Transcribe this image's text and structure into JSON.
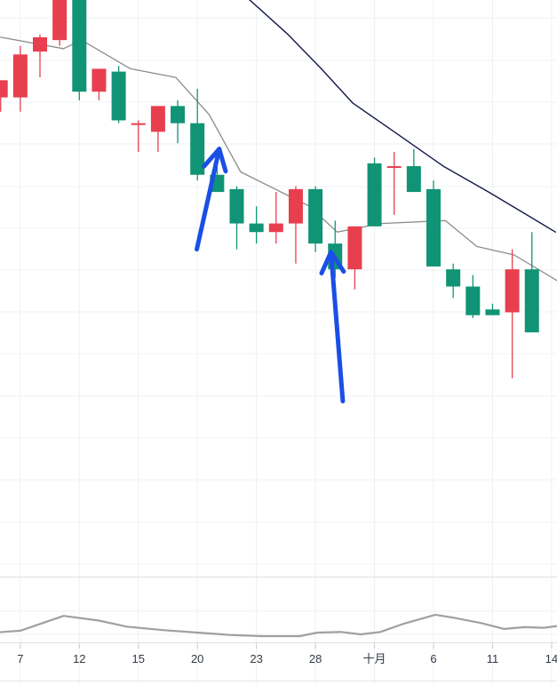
{
  "chart_data": {
    "type": "candlestick",
    "grid": true,
    "price_axis": {
      "ylim": [
        0,
        100
      ]
    },
    "x_tick_labels": [
      {
        "day": 1,
        "label": "7"
      },
      {
        "day": 4,
        "label": "12"
      },
      {
        "day": 7,
        "label": "15"
      },
      {
        "day": 10,
        "label": "20"
      },
      {
        "day": 13,
        "label": "23"
      },
      {
        "day": 16,
        "label": "28"
      },
      {
        "day": 19,
        "label": "十月"
      },
      {
        "day": 22,
        "label": "6"
      },
      {
        "day": 25,
        "label": "11"
      },
      {
        "day": 28,
        "label": "14"
      }
    ],
    "candles": [
      {
        "day": 0,
        "open": 83.0,
        "high": 85.5,
        "low": 80.5,
        "close": 86.0
      },
      {
        "day": 1,
        "open": 83.0,
        "high": 92.0,
        "low": 80.5,
        "close": 90.5
      },
      {
        "day": 2,
        "open": 91.0,
        "high": 94.0,
        "low": 86.5,
        "close": 93.5
      },
      {
        "day": 3,
        "open": 93.0,
        "high": 101.0,
        "low": 92.0,
        "close": 100.5
      },
      {
        "day": 4,
        "open": 100.5,
        "high": 101.0,
        "low": 82.5,
        "close": 84.0
      },
      {
        "day": 5,
        "open": 84.0,
        "high": 88.0,
        "low": 82.5,
        "close": 88.0
      },
      {
        "day": 6,
        "open": 87.5,
        "high": 88.5,
        "low": 78.5,
        "close": 79.0
      },
      {
        "day": 7,
        "open": 78.5,
        "high": 79.0,
        "low": 73.5,
        "close": 78.5
      },
      {
        "day": 8,
        "open": 77.0,
        "high": 81.5,
        "low": 73.5,
        "close": 81.5
      },
      {
        "day": 9,
        "open": 81.5,
        "high": 82.5,
        "low": 75.0,
        "close": 78.5
      },
      {
        "day": 10,
        "open": 78.5,
        "high": 84.5,
        "low": 68.5,
        "close": 69.5
      },
      {
        "day": 11,
        "open": 69.5,
        "high": 73.0,
        "low": 66.5,
        "close": 66.5
      },
      {
        "day": 12,
        "open": 67.0,
        "high": 67.5,
        "low": 56.5,
        "close": 61.0
      },
      {
        "day": 13,
        "open": 61.0,
        "high": 64.0,
        "low": 57.5,
        "close": 59.5
      },
      {
        "day": 14,
        "open": 59.5,
        "high": 66.5,
        "low": 57.5,
        "close": 61.0
      },
      {
        "day": 15,
        "open": 61.0,
        "high": 67.5,
        "low": 54.0,
        "close": 67.0
      },
      {
        "day": 16,
        "open": 67.0,
        "high": 67.5,
        "low": 56.0,
        "close": 57.5
      },
      {
        "day": 17,
        "open": 57.5,
        "high": 61.5,
        "low": 51.5,
        "close": 53.0
      },
      {
        "day": 18,
        "open": 53.0,
        "high": 60.5,
        "low": 49.5,
        "close": 60.5
      },
      {
        "day": 19,
        "open": 71.5,
        "high": 72.5,
        "low": 60.5,
        "close": 60.5
      },
      {
        "day": 20,
        "open": 71.0,
        "high": 73.5,
        "low": 62.5,
        "close": 71.0
      },
      {
        "day": 21,
        "open": 71.0,
        "high": 74.0,
        "low": 66.5,
        "close": 66.5
      },
      {
        "day": 22,
        "open": 67.0,
        "high": 68.5,
        "low": 53.5,
        "close": 53.5
      },
      {
        "day": 23,
        "open": 53.0,
        "high": 54.0,
        "low": 48.0,
        "close": 50.0
      },
      {
        "day": 24,
        "open": 50.0,
        "high": 52.0,
        "low": 44.5,
        "close": 45.0
      },
      {
        "day": 25,
        "open": 46.0,
        "high": 47.0,
        "low": 45.0,
        "close": 45.0
      },
      {
        "day": 26,
        "open": 45.5,
        "high": 56.5,
        "low": 34.0,
        "close": 53.0
      },
      {
        "day": 27,
        "open": 53.0,
        "high": 59.5,
        "low": 42.0,
        "close": 42.0
      }
    ],
    "ma_fast": {
      "color": "#8c8c8c",
      "x": [
        0,
        3.2,
        4.1,
        6.6,
        8.9,
        10.6,
        12.2,
        15.7,
        17.1,
        19.3,
        22.6,
        24.2,
        26.1,
        28.3
      ],
      "y": [
        93.5,
        91.5,
        93.0,
        88.0,
        86.5,
        80.0,
        70.0,
        64.0,
        59.5,
        61.0,
        61.5,
        57.0,
        55.5,
        51.0
      ]
    },
    "ma_slow": {
      "color": "#14184a",
      "x": [
        10.7,
        12.5,
        14.6,
        16.3,
        17.9,
        20.0,
        22.5,
        24.8,
        26.5,
        28.2
      ],
      "y": [
        104.0,
        100.5,
        94.0,
        88.0,
        82.0,
        77.0,
        71.0,
        66.5,
        63.0,
        59.5
      ]
    },
    "indicator": {
      "color": "#a0a0a0",
      "x": [
        -0.3,
        1.0,
        3.2,
        5.0,
        6.4,
        8.3,
        10.0,
        11.6,
        13.3,
        15.2,
        16.1,
        17.3,
        18.3,
        19.3,
        20.5,
        22.1,
        23.0,
        24.4,
        25.6,
        26.6,
        27.6,
        28.3
      ],
      "y": [
        15.0,
        18.0,
        43.0,
        35.0,
        25.0,
        19.0,
        15.0,
        11.0,
        9.0,
        9.0,
        15.0,
        16.0,
        12.0,
        16.0,
        30.0,
        45.0,
        40.0,
        31.0,
        21.0,
        24.0,
        23.0,
        26.0
      ]
    },
    "colors": {
      "up": "#e83f4f",
      "down": "#119475"
    }
  },
  "annotations": {
    "color": "#1a4fe6",
    "arrows": [
      {
        "from_day": 9.97,
        "from_y": 56.5,
        "to_day": 11.11,
        "to_y": 74.0
      },
      {
        "from_day": 17.39,
        "from_y": 30.0,
        "to_day": 16.79,
        "to_y": 56.0
      }
    ]
  }
}
